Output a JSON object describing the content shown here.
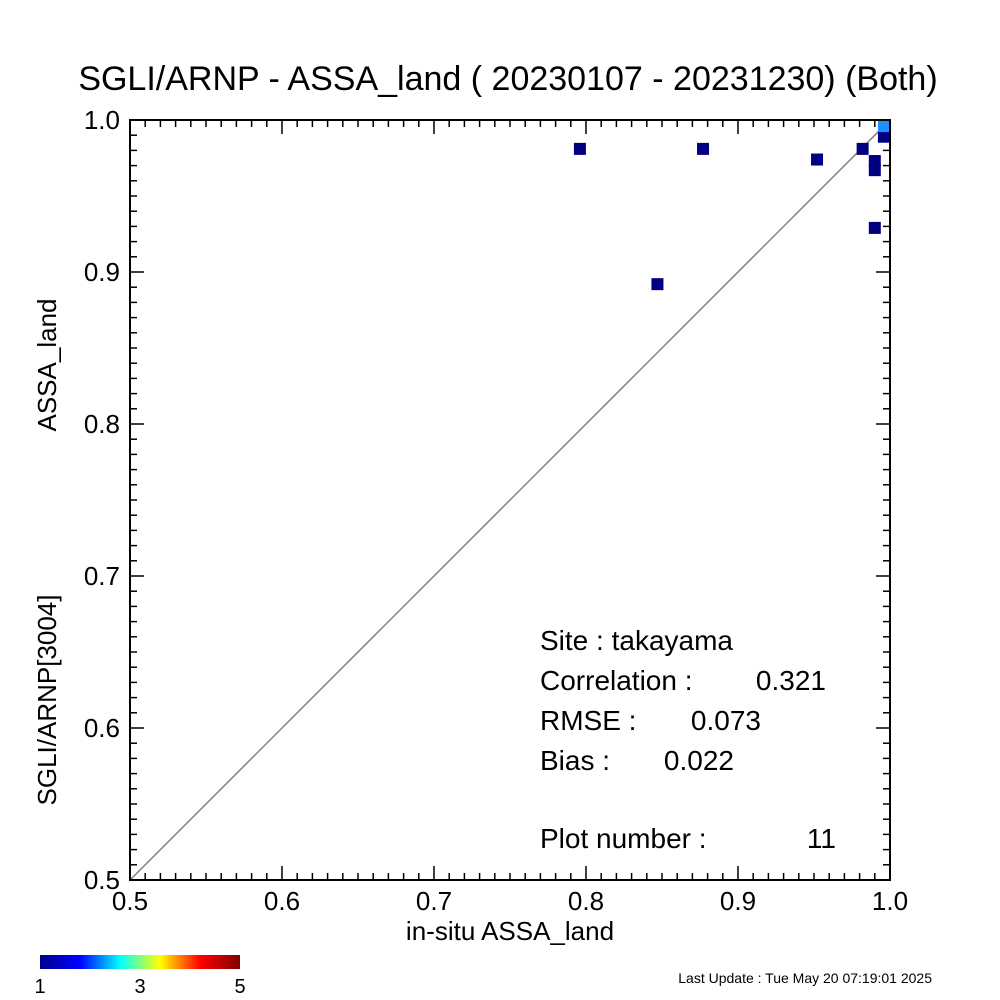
{
  "chart_data": {
    "type": "scatter",
    "title": "SGLI/ARNP - ASSA_land ( 20230107 - 20231230) (Both)",
    "xlabel": "in-situ ASSA_land",
    "ylabel_part1": "SGLI/ARNP[3004]",
    "ylabel_part2": "ASSA_land",
    "xlim": [
      0.5,
      1.0
    ],
    "ylim": [
      0.5,
      1.0
    ],
    "xticks": [
      "0.5",
      "0.6",
      "0.7",
      "0.8",
      "0.9",
      "1.0"
    ],
    "yticks": [
      "0.5",
      "0.6",
      "0.7",
      "0.8",
      "0.9",
      "1.0"
    ],
    "reference_line": "1:1",
    "points": [
      {
        "x": 0.796,
        "y": 0.981,
        "count": 1
      },
      {
        "x": 0.847,
        "y": 0.892,
        "count": 1
      },
      {
        "x": 0.877,
        "y": 0.981,
        "count": 1
      },
      {
        "x": 0.952,
        "y": 0.974,
        "count": 1
      },
      {
        "x": 0.982,
        "y": 0.981,
        "count": 1
      },
      {
        "x": 0.99,
        "y": 0.973,
        "count": 1
      },
      {
        "x": 0.99,
        "y": 0.967,
        "count": 1
      },
      {
        "x": 0.99,
        "y": 0.929,
        "count": 1
      },
      {
        "x": 0.996,
        "y": 0.989,
        "count": 1
      },
      {
        "x": 0.996,
        "y": 0.996,
        "count": 2
      }
    ],
    "stats": {
      "site_label": "Site : takayama",
      "corr_label": "Correlation :",
      "corr_value": "0.321",
      "rmse_label": "RMSE :",
      "rmse_value": "0.073",
      "bias_label": "Bias :",
      "bias_value": "0.022",
      "plotnum_label": "Plot number :",
      "plotnum_value": "11"
    },
    "colorbar": {
      "ticks": [
        "1",
        "3",
        "5"
      ],
      "min": 1,
      "max": 5,
      "colors": [
        "#00008f",
        "#0000ff",
        "#00ffff",
        "#ffff00",
        "#ff0000",
        "#800000"
      ]
    },
    "point_color_low": "#000080",
    "point_color_high": "#1e90ff"
  },
  "footer": {
    "last_update": "Last Update : Tue May 20 07:19:01 2025"
  }
}
